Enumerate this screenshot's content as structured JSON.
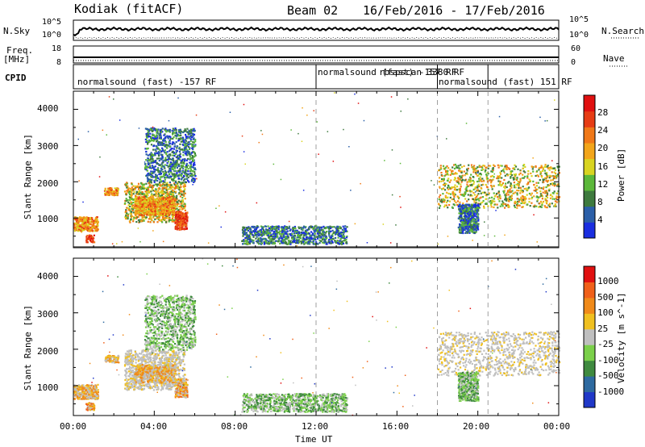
{
  "header": {
    "station": "Kodiak",
    "method": "(fitACF)",
    "beam": "Beam 02",
    "date_range": "16/Feb/2016 - 17/Feb/2016"
  },
  "top_panels": {
    "nsky_label": "N.Sky",
    "nsky_ticks": [
      "10^5",
      "10^0"
    ],
    "nsearch_label": "N.Search",
    "nsearch_ticks": [
      "10^5",
      "10^0"
    ],
    "freq_label": "Freq.",
    "freq_unit": "[MHz]",
    "freq_ticks": [
      "18",
      "8"
    ],
    "nave_label": "Nave",
    "nave_ticks": [
      "60",
      "0"
    ],
    "cpid_label": "CPID",
    "cpid_segments": [
      {
        "label": "normalsound (fast) -157 RF"
      },
      {
        "label": "normalsound (fast) -157 RF"
      },
      {
        "label": "rbspscan 3380 RF"
      },
      {
        "label": "normalsound (fast) 151 RF"
      }
    ]
  },
  "axes": {
    "ylabel": "Slant Range [km]",
    "xlabel": "Time UT",
    "y_ticks": [
      "4000",
      "3000",
      "2000",
      "1000"
    ],
    "x_ticks": [
      "00:00",
      "04:00",
      "08:00",
      "12:00",
      "16:00",
      "20:00",
      "00:00"
    ]
  },
  "colorbars": {
    "power": {
      "label": "Power [dB]",
      "ticks": [
        "28",
        "24",
        "20",
        "16",
        "12",
        "8",
        "4"
      ],
      "colors": [
        "#1a2ee0",
        "#2b5fa8",
        "#3e7a3e",
        "#5cb83a",
        "#d9d421",
        "#f2a51a",
        "#f07818",
        "#e63c14",
        "#e01010"
      ]
    },
    "velocity": {
      "label": "Velocity [m s^-1]",
      "ticks": [
        "1000",
        "500",
        "100",
        "25",
        "-25",
        "-100",
        "-500",
        "-1000"
      ],
      "colors": [
        "#2038c8",
        "#2e6aa0",
        "#3f8a3f",
        "#7bd04a",
        "#bfbfbf",
        "#f0c020",
        "#f08a1a",
        "#f0601a",
        "#e01010"
      ]
    }
  },
  "chart_data": {
    "type": "heatmap",
    "x_range_hours": [
      0,
      24
    ],
    "y_range_km": [
      180,
      4500
    ],
    "dashed_marks_hours": [
      12.0,
      18.0,
      20.5
    ],
    "power_echo_regions": [
      {
        "t0": 0.0,
        "t1": 1.2,
        "r0": 650,
        "r1": 1050,
        "level": "high"
      },
      {
        "t0": 0.6,
        "t1": 1.0,
        "r0": 350,
        "r1": 550,
        "level": "max"
      },
      {
        "t0": 1.5,
        "t1": 2.2,
        "r0": 1650,
        "r1": 1850,
        "level": "high"
      },
      {
        "t0": 2.5,
        "t1": 5.5,
        "r0": 900,
        "r1": 2000,
        "level": "mid"
      },
      {
        "t0": 3.0,
        "t1": 5.0,
        "r0": 1100,
        "r1": 1600,
        "level": "high"
      },
      {
        "t0": 5.0,
        "t1": 5.6,
        "r0": 700,
        "r1": 1200,
        "level": "max"
      },
      {
        "t0": 3.5,
        "t1": 6.0,
        "r0": 2000,
        "r1": 3500,
        "level": "low"
      },
      {
        "t0": 8.3,
        "t1": 13.5,
        "r0": 300,
        "r1": 800,
        "level": "low"
      },
      {
        "t0": 18.0,
        "t1": 24.0,
        "r0": 1300,
        "r1": 2500,
        "level": "mid"
      },
      {
        "t0": 19.0,
        "t1": 20.0,
        "r0": 600,
        "r1": 1400,
        "level": "low"
      }
    ]
  }
}
